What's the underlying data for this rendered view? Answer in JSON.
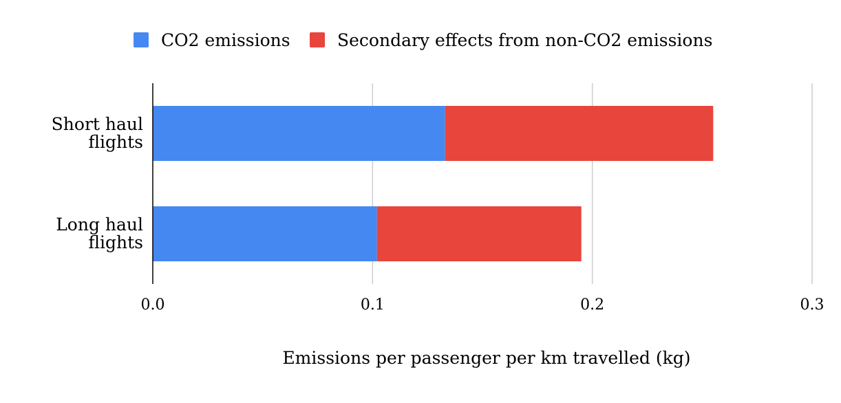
{
  "chart_data": {
    "type": "bar",
    "orientation": "horizontal",
    "stacked": true,
    "categories": [
      [
        "Short haul",
        "flights"
      ],
      [
        "Long haul",
        "flights"
      ]
    ],
    "series": [
      {
        "name": "CO2 emissions",
        "color": "#4688F1",
        "values": [
          0.133,
          0.102
        ]
      },
      {
        "name": "Secondary effects from non-CO2 emissions",
        "color": "#E8453C",
        "values": [
          0.122,
          0.093
        ]
      }
    ],
    "title": "",
    "xlabel": "Emissions per passenger per km travelled (kg)",
    "ylabel": "",
    "xlim": [
      0,
      0.3
    ],
    "xticks": [
      {
        "value": 0.0,
        "label": "0.0"
      },
      {
        "value": 0.1,
        "label": "0.1"
      },
      {
        "value": 0.2,
        "label": "0.2"
      },
      {
        "value": 0.3,
        "label": "0.3"
      }
    ],
    "grid": true,
    "legend_position": "top"
  }
}
